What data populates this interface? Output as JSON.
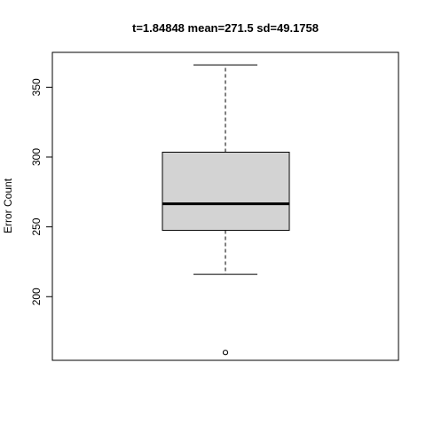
{
  "chart_data": {
    "type": "boxplot",
    "title": "t=1.84848 mean=271.5 sd=49.1758",
    "xlabel": "",
    "ylabel": "Error Count",
    "ylim": [
      154.4,
      375.0
    ],
    "yticks": [
      200,
      250,
      300,
      350
    ],
    "grid": false,
    "box": {
      "whisker_low": 216,
      "q1": 247.5,
      "median": 266.5,
      "q3": 303.5,
      "whisker_high": 366,
      "outliers": [
        160
      ]
    },
    "colors": {
      "box_fill": "#d3d3d3",
      "stroke": "#000000"
    }
  }
}
